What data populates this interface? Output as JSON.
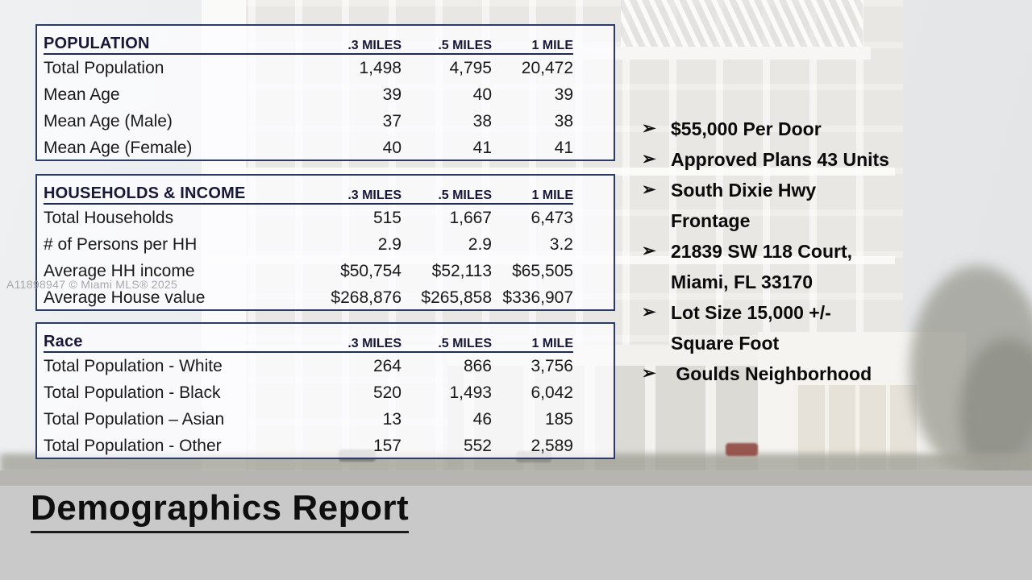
{
  "title": "Demographics Report",
  "watermark": "A11898947 © Miami MLS® 2025",
  "columns": [
    ".3 MILES",
    ".5 MILES",
    "1 MILE"
  ],
  "tables": [
    {
      "title": "POPULATION",
      "rows": [
        {
          "label": "Total Population",
          "values": [
            "1,498",
            "4,795",
            "20,472"
          ]
        },
        {
          "label": "Mean Age",
          "values": [
            "39",
            "40",
            "39"
          ]
        },
        {
          "label": "Mean Age (Male)",
          "values": [
            "37",
            "38",
            "38"
          ]
        },
        {
          "label": "Mean Age (Female)",
          "values": [
            "40",
            "41",
            "41"
          ]
        }
      ]
    },
    {
      "title": "HOUSEHOLDS & INCOME",
      "rows": [
        {
          "label": "Total Households",
          "values": [
            "515",
            "1,667",
            "6,473"
          ]
        },
        {
          "label": "# of Persons per HH",
          "values": [
            "2.9",
            "2.9",
            "3.2"
          ]
        },
        {
          "label": "Average HH income",
          "values": [
            "$50,754",
            "$52,113",
            "$65,505"
          ]
        },
        {
          "label": "Average House value",
          "values": [
            "$268,876",
            "$265,858",
            "$336,907"
          ]
        }
      ]
    },
    {
      "title": "Race",
      "rows": [
        {
          "label": "Total Population - White",
          "values": [
            "264",
            "866",
            "3,756"
          ]
        },
        {
          "label": "Total Population - Black",
          "values": [
            "520",
            "1,493",
            "6,042"
          ]
        },
        {
          "label": "Total Population – Asian",
          "values": [
            "13",
            "46",
            "185"
          ]
        },
        {
          "label": "Total Population - Other",
          "values": [
            "157",
            "552",
            "2,589"
          ]
        }
      ]
    }
  ],
  "bullets": {
    "glyph": "➢",
    "items": [
      "$55,000 Per Door",
      "Approved Plans 43 Units",
      "South Dixie Hwy\nFrontage",
      "21839 SW 118 Court,\nMiami, FL 33170",
      "Lot Size 15,000 +/-\nSquare Foot",
      " Goulds Neighborhood"
    ]
  },
  "colors": {
    "table_border": "#2b3a67",
    "header_text": "#171738",
    "body_text": "#191919",
    "footer_band": "#c9c9c9"
  }
}
